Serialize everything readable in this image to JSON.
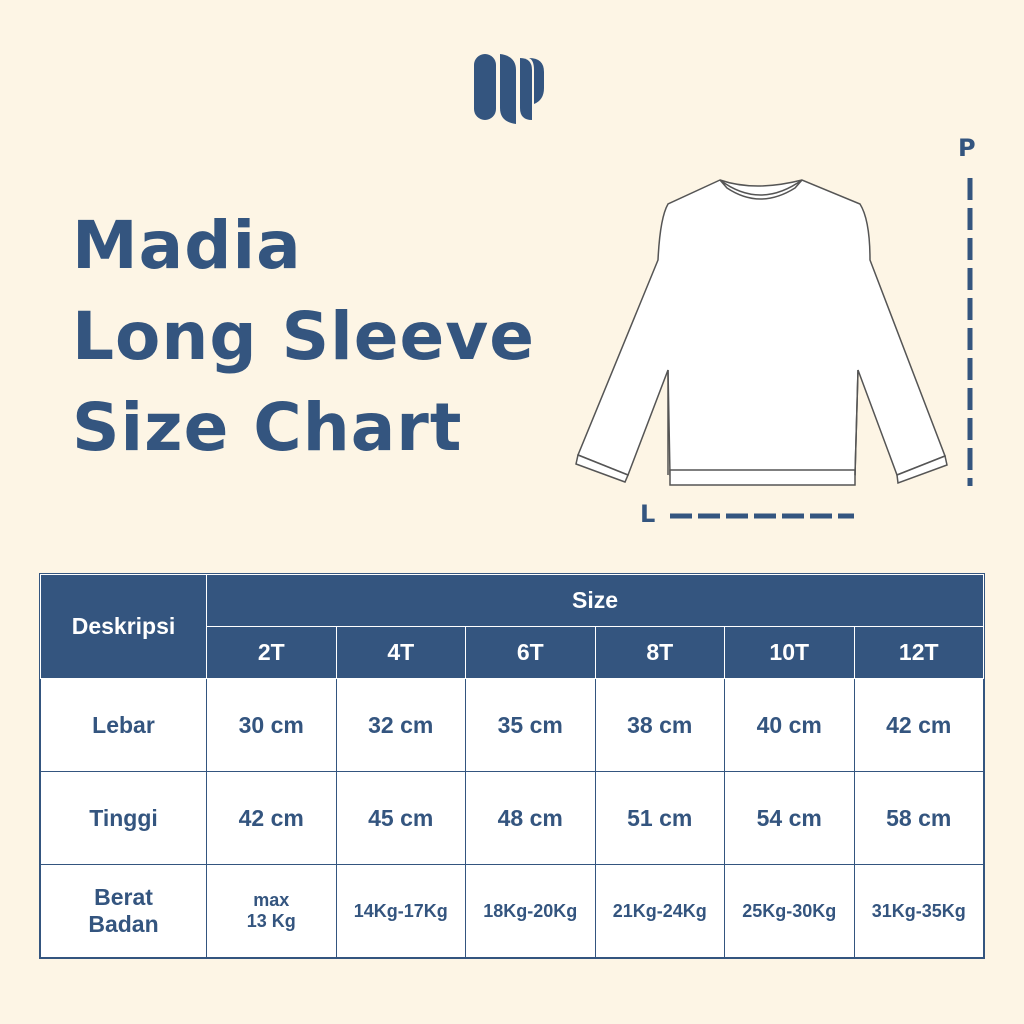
{
  "brand": {
    "logo": "madia-logo",
    "color": "#34557f",
    "background": "#fdf5e5"
  },
  "title": {
    "line1": "Madia",
    "line2": "Long Sleeve",
    "line3": "Size Chart"
  },
  "diagram": {
    "length_label": "P",
    "width_label": "L",
    "icon": "long-sleeve-shirt"
  },
  "table": {
    "desc_header": "Deskripsi",
    "size_header": "Size",
    "sizes": [
      "2T",
      "4T",
      "6T",
      "8T",
      "10T",
      "12T"
    ],
    "rows": [
      {
        "label": "Lebar",
        "values": [
          "30 cm",
          "32 cm",
          "35 cm",
          "38 cm",
          "40 cm",
          "42 cm"
        ]
      },
      {
        "label": "Tinggi",
        "values": [
          "42 cm",
          "45 cm",
          "48 cm",
          "51 cm",
          "54 cm",
          "58 cm"
        ]
      },
      {
        "label_line1": "Berat",
        "label_line2": "Badan",
        "first_line1": "max",
        "first_line2": "13 Kg",
        "values": [
          "14Kg-17Kg",
          "18Kg-20Kg",
          "21Kg-24Kg",
          "25Kg-30Kg",
          "31Kg-35Kg"
        ]
      }
    ]
  }
}
